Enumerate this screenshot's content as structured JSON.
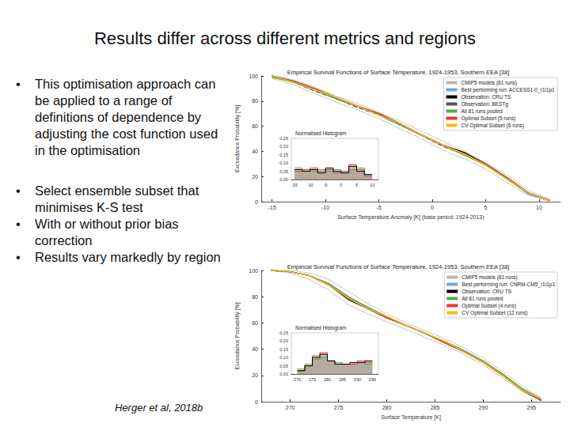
{
  "slide": {
    "title": "Results differ across different metrics and regions",
    "bullets": [
      "This optimisation approach can be applied to a range of definitions of dependence by adjusting the cost function used in the optimisation",
      "Select ensemble subset that minimises K-S test",
      "With or without prior bias correction",
      "Results vary markedly by region"
    ],
    "citation": "Herger et al, 2018b"
  },
  "chart_data": [
    {
      "type": "line",
      "title": "Empirical Survival Functions of Surface Temperature, 1924-1953, Southern EEA [38]",
      "x_label": "Surface Temperature Anomaly [K] (base period: 1924-2013)",
      "y_label": "Exceedance Probability [%]",
      "xlim": [
        -16,
        12
      ],
      "xticks": [
        -15,
        -10,
        -5,
        0,
        5,
        10
      ],
      "ylim": [
        0,
        100
      ],
      "yticks": [
        0,
        20,
        40,
        60,
        80,
        100
      ],
      "grid": false,
      "legend": "upper right",
      "x": [
        -15,
        -13,
        -11,
        -9,
        -7,
        -5,
        -3,
        -1,
        1,
        3,
        5,
        7,
        9,
        11
      ],
      "series": [
        {
          "name": "CMIP5 models (81 runs)",
          "color": "#b8b8b8",
          "values": [
            99,
            95,
            89,
            82,
            76,
            69,
            61,
            52,
            44,
            37,
            29,
            18,
            7,
            1
          ]
        },
        {
          "name": "CMIP5 models (81 runs)",
          "color": "#b8b8b8",
          "values": [
            100,
            97,
            91,
            84,
            78,
            71,
            64,
            56,
            48,
            40,
            31,
            21,
            9,
            2
          ]
        },
        {
          "name": "CMIP5 models (81 runs)",
          "color": "#b8b8b8",
          "values": [
            98,
            93,
            86,
            79,
            73,
            66,
            58,
            50,
            41,
            34,
            26,
            15,
            5,
            0
          ]
        },
        {
          "name": "Best performing run: ACCESS1-0_r1i1p1",
          "color": "#6fa8dc",
          "values": [
            100,
            96,
            90,
            83,
            76,
            69,
            61,
            53,
            45,
            38,
            29,
            18,
            6,
            1
          ]
        },
        {
          "name": "Observation: CRU TS",
          "color": "#000000",
          "values": [
            100,
            95,
            89,
            82,
            76,
            70,
            62,
            53,
            45,
            39,
            30,
            19,
            7,
            1
          ]
        },
        {
          "name": "Observation: BESTg",
          "color": "#555555",
          "line_style": "dashed",
          "values": [
            100,
            95,
            88,
            82,
            75,
            69,
            61,
            53,
            44,
            38,
            29,
            18,
            7,
            1
          ]
        },
        {
          "name": "All 81 runs pooled",
          "color": "#4caf50",
          "values": [
            99,
            95,
            89,
            82,
            76,
            69,
            61,
            53,
            45,
            37,
            29,
            18,
            7,
            1
          ]
        },
        {
          "name": "Optimal Subset (5 runs)",
          "color": "#e53935",
          "values": [
            100,
            96,
            90,
            83,
            76,
            70,
            62,
            53,
            45,
            38,
            30,
            19,
            7,
            1
          ]
        },
        {
          "name": "CV Optimal Subset (6 runs)",
          "color": "#f2c200",
          "values": [
            100,
            95,
            89,
            83,
            76,
            69,
            62,
            53,
            45,
            38,
            29,
            18,
            7,
            1
          ]
        }
      ],
      "inset": {
        "type": "histogram",
        "title": "Normalised Histogram",
        "xlim": [
          -16,
          12
        ],
        "xticks": [
          -15,
          -10,
          -5,
          0,
          5,
          10
        ],
        "ylim": [
          0,
          0.25
        ],
        "yticks": [
          {
            "value": 0,
            "label": "0.00"
          },
          0.05,
          {
            "value": 0.1,
            "label": "0.10"
          },
          0.15,
          {
            "value": 0.2,
            "label": "0.20"
          },
          0.25
        ],
        "bins": [
          -15,
          -12.5,
          -10,
          -7.5,
          -5,
          -2.5,
          0,
          2.5,
          5,
          7.5,
          10
        ],
        "series": [
          {
            "name": "All 81 runs pooled",
            "color": "#4caf50",
            "values": [
              0.07,
              0.06,
              0.05,
              0.06,
              0.05,
              0.06,
              0.05,
              0.06,
              0.07,
              0.03
            ]
          },
          {
            "name": "Optimal Subset (5 runs)",
            "color": "#e53935",
            "values": [
              0.05,
              0.06,
              0.07,
              0.05,
              0.06,
              0.04,
              0.05,
              0.09,
              0.06,
              0.02
            ]
          },
          {
            "name": "Observation: CRU TS",
            "color": "#000000",
            "values": [
              0.06,
              0.05,
              0.06,
              0.04,
              0.07,
              0.05,
              0.04,
              0.08,
              0.05,
              0.03
            ]
          }
        ]
      }
    },
    {
      "type": "line",
      "title": "Empirical Survival Functions of Surface Temperature, 1924-1953, Southern EEA [38]",
      "x_label": "Surface Temperature [K]",
      "y_label": "Exceedance Probability [%]",
      "xlim": [
        267,
        298
      ],
      "xticks": [
        270,
        275,
        280,
        285,
        290,
        295
      ],
      "ylim": [
        0,
        100
      ],
      "yticks": [
        0,
        20,
        40,
        60,
        80,
        100
      ],
      "grid": false,
      "legend": "upper right",
      "x": [
        268,
        270,
        272,
        274,
        276,
        278,
        280,
        282,
        284,
        286,
        288,
        290,
        292,
        294,
        296
      ],
      "series": [
        {
          "name": "CMIP5 models (81 runs)",
          "color": "#b8b8b8",
          "values": [
            100,
            99,
            96,
            89,
            79,
            71,
            64,
            58,
            52,
            46,
            39,
            31,
            21,
            10,
            2
          ]
        },
        {
          "name": "CMIP5 models (81 runs)",
          "color": "#b8b8b8",
          "values": [
            100,
            100,
            98,
            93,
            84,
            75,
            67,
            60,
            54,
            48,
            41,
            33,
            23,
            12,
            3
          ]
        },
        {
          "name": "CMIP5 models (81 runs)",
          "color": "#b8b8b8",
          "values": [
            100,
            98,
            93,
            85,
            74,
            67,
            61,
            55,
            49,
            43,
            36,
            28,
            18,
            8,
            1
          ]
        },
        {
          "name": "Best performing run: CNRM-CM5_r1i1p1",
          "color": "#6fa8dc",
          "values": [
            100,
            99,
            96,
            90,
            80,
            72,
            65,
            58,
            52,
            46,
            39,
            31,
            21,
            10,
            2
          ]
        },
        {
          "name": "Observation: CRU TS",
          "color": "#000000",
          "values": [
            100,
            99,
            96,
            89,
            78,
            71,
            64,
            58,
            52,
            45,
            38,
            30,
            20,
            9,
            1
          ]
        },
        {
          "name": "All 81 runs pooled",
          "color": "#4caf50",
          "values": [
            100,
            99,
            96,
            90,
            80,
            72,
            65,
            58,
            52,
            46,
            39,
            31,
            21,
            10,
            2
          ]
        },
        {
          "name": "Optimal Subset (4 runs)",
          "color": "#e53935",
          "values": [
            100,
            99,
            96,
            89,
            79,
            71,
            64,
            58,
            52,
            45,
            38,
            30,
            20,
            9,
            1
          ]
        },
        {
          "name": "CV Optimal Subset (12 runs)",
          "color": "#f2c200",
          "values": [
            100,
            99,
            96,
            89,
            79,
            71,
            65,
            58,
            52,
            46,
            38,
            30,
            20,
            9,
            2
          ]
        }
      ],
      "inset": {
        "type": "histogram",
        "title": "Normalised Histogram",
        "xlim": [
          268,
          297
        ],
        "xticks": [
          270,
          275,
          280,
          285,
          290,
          295
        ],
        "ylim": [
          0,
          0.25
        ],
        "yticks": [
          {
            "value": 0,
            "label": "0.00"
          },
          0.05,
          {
            "value": 0.1,
            "label": "0.10"
          },
          0.15,
          {
            "value": 0.2,
            "label": "0.20"
          },
          0.25
        ],
        "bins": [
          270,
          272.5,
          275,
          277.5,
          280,
          282.5,
          285,
          287.5,
          290,
          292.5,
          295
        ],
        "series": [
          {
            "name": "All 81 runs pooled",
            "color": "#4caf50",
            "values": [
              0.03,
              0.06,
              0.09,
              0.1,
              0.08,
              0.07,
              0.06,
              0.06,
              0.07,
              0.06
            ]
          },
          {
            "name": "Optimal Subset (4 runs)",
            "color": "#e53935",
            "values": [
              0.02,
              0.05,
              0.11,
              0.13,
              0.08,
              0.06,
              0.06,
              0.06,
              0.08,
              0.07
            ]
          },
          {
            "name": "Observation: CRU TS",
            "color": "#000000",
            "values": [
              0.02,
              0.05,
              0.1,
              0.12,
              0.08,
              0.06,
              0.06,
              0.07,
              0.07,
              0.08
            ]
          }
        ]
      }
    }
  ]
}
